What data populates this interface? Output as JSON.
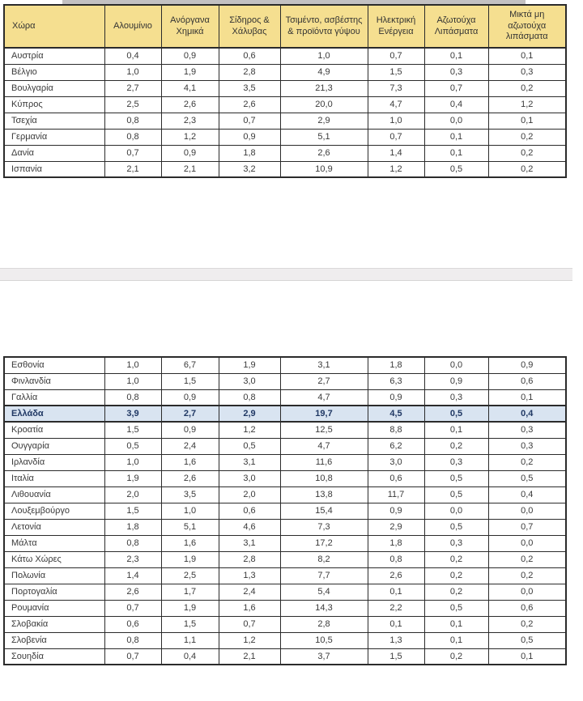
{
  "colors": {
    "header_bg": "#F5DF90",
    "highlight_bg": "#D9E4F1",
    "border": "#2b2b2b",
    "page_gap_bg": "#EFEDEE"
  },
  "header": {
    "columns": [
      "Χώρα",
      "Αλουμίνιο",
      "Ανόργανα Χημικά",
      "Σίδηρος & Χάλυβας",
      "Τσιμέντο, ασβέστης & προϊόντα γύψου",
      "Ηλεκτρική Ενέργεια",
      "Αζωτούχα Λιπάσματα",
      "Μικτά μη αζωτούχα λιπάσματα"
    ]
  },
  "tables": [
    {
      "id": "page1",
      "rows": [
        {
          "country": "Αυστρία",
          "values": [
            "0,4",
            "0,9",
            "0,6",
            "1,0",
            "0,7",
            "0,1",
            "0,1"
          ],
          "highlight": false
        },
        {
          "country": "Βέλγιο",
          "values": [
            "1,0",
            "1,9",
            "2,8",
            "4,9",
            "1,5",
            "0,3",
            "0,3"
          ],
          "highlight": false
        },
        {
          "country": "Βουλγαρία",
          "values": [
            "2,7",
            "4,1",
            "3,5",
            "21,3",
            "7,3",
            "0,7",
            "0,2"
          ],
          "highlight": false
        },
        {
          "country": "Κύπρος",
          "values": [
            "2,5",
            "2,6",
            "2,6",
            "20,0",
            "4,7",
            "0,4",
            "1,2"
          ],
          "highlight": false
        },
        {
          "country": "Τσεχία",
          "values": [
            "0,8",
            "2,3",
            "0,7",
            "2,9",
            "1,0",
            "0,0",
            "0,1"
          ],
          "highlight": false
        },
        {
          "country": "Γερμανία",
          "values": [
            "0,8",
            "1,2",
            "0,9",
            "5,1",
            "0,7",
            "0,1",
            "0,2"
          ],
          "highlight": false
        },
        {
          "country": "Δανία",
          "values": [
            "0,7",
            "0,9",
            "1,8",
            "2,6",
            "1,4",
            "0,1",
            "0,2"
          ],
          "highlight": false
        },
        {
          "country": "Ισπανία",
          "values": [
            "2,1",
            "2,1",
            "3,2",
            "10,9",
            "1,2",
            "0,5",
            "0,2"
          ],
          "highlight": false
        }
      ]
    },
    {
      "id": "page2",
      "rows": [
        {
          "country": "Εσθονία",
          "values": [
            "1,0",
            "6,7",
            "1,9",
            "3,1",
            "1,8",
            "0,0",
            "0,9"
          ],
          "highlight": false
        },
        {
          "country": "Φινλανδία",
          "values": [
            "1,0",
            "1,5",
            "3,0",
            "2,7",
            "6,3",
            "0,9",
            "0,6"
          ],
          "highlight": false
        },
        {
          "country": "Γαλλία",
          "values": [
            "0,8",
            "0,9",
            "0,8",
            "4,7",
            "0,9",
            "0,3",
            "0,1"
          ],
          "highlight": false
        },
        {
          "country": "Ελλάδα",
          "values": [
            "3,9",
            "2,7",
            "2,9",
            "19,7",
            "4,5",
            "0,5",
            "0,4"
          ],
          "highlight": true
        },
        {
          "country": "Κροατία",
          "values": [
            "1,5",
            "0,9",
            "1,2",
            "12,5",
            "8,8",
            "0,1",
            "0,3"
          ],
          "highlight": false
        },
        {
          "country": "Ουγγαρία",
          "values": [
            "0,5",
            "2,4",
            "0,5",
            "4,7",
            "6,2",
            "0,2",
            "0,3"
          ],
          "highlight": false
        },
        {
          "country": "Ιρλανδία",
          "values": [
            "1,0",
            "1,6",
            "3,1",
            "11,6",
            "3,0",
            "0,3",
            "0,2"
          ],
          "highlight": false
        },
        {
          "country": "Ιταλία",
          "values": [
            "1,9",
            "2,6",
            "3,0",
            "10,8",
            "0,6",
            "0,5",
            "0,5"
          ],
          "highlight": false
        },
        {
          "country": "Λιθουανία",
          "values": [
            "2,0",
            "3,5",
            "2,0",
            "13,8",
            "11,7",
            "0,5",
            "0,4"
          ],
          "highlight": false
        },
        {
          "country": "Λουξεμβούργο",
          "values": [
            "1,5",
            "1,0",
            "0,6",
            "15,4",
            "0,9",
            "0,0",
            "0,0"
          ],
          "highlight": false
        },
        {
          "country": "Λετονία",
          "values": [
            "1,8",
            "5,1",
            "4,6",
            "7,3",
            "2,9",
            "0,5",
            "0,7"
          ],
          "highlight": false
        },
        {
          "country": "Μάλτα",
          "values": [
            "0,8",
            "1,6",
            "3,1",
            "17,2",
            "1,8",
            "0,3",
            "0,0"
          ],
          "highlight": false
        },
        {
          "country": "Κάτω Χώρες",
          "values": [
            "2,3",
            "1,9",
            "2,8",
            "8,2",
            "0,8",
            "0,2",
            "0,2"
          ],
          "highlight": false
        },
        {
          "country": "Πολωνία",
          "values": [
            "1,4",
            "2,5",
            "1,3",
            "7,7",
            "2,6",
            "0,2",
            "0,2"
          ],
          "highlight": false
        },
        {
          "country": "Πορτογαλία",
          "values": [
            "2,6",
            "1,7",
            "2,4",
            "5,4",
            "0,1",
            "0,2",
            "0,0"
          ],
          "highlight": false
        },
        {
          "country": "Ρουμανία",
          "values": [
            "0,7",
            "1,9",
            "1,6",
            "14,3",
            "2,2",
            "0,5",
            "0,6"
          ],
          "highlight": false
        },
        {
          "country": "Σλοβακία",
          "values": [
            "0,6",
            "1,5",
            "0,7",
            "2,8",
            "0,1",
            "0,1",
            "0,2"
          ],
          "highlight": false
        },
        {
          "country": "Σλοβενία",
          "values": [
            "0,8",
            "1,1",
            "1,2",
            "10,5",
            "1,3",
            "0,1",
            "0,5"
          ],
          "highlight": false
        },
        {
          "country": "Σουηδία",
          "values": [
            "0,7",
            "0,4",
            "2,1",
            "3,7",
            "1,5",
            "0,2",
            "0,1"
          ],
          "highlight": false
        }
      ]
    }
  ]
}
